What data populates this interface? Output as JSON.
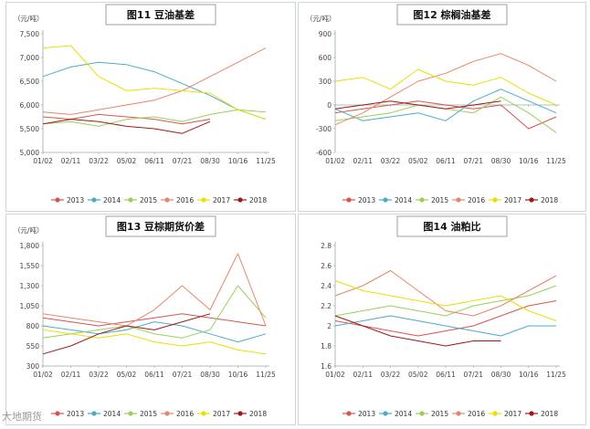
{
  "source_watermark": "大地期货",
  "colors": {
    "2013": "#d9534f",
    "2014": "#4bacc6",
    "2015": "#9bcf5a",
    "2016": "#e8856a",
    "2017": "#e8e000",
    "2018": "#9c1a1a"
  },
  "chart_data": [
    {
      "type": "line",
      "title": "图11 豆油基差",
      "ylabel": "（元/吨）",
      "x_ticks": [
        "01/02",
        "02/11",
        "03/22",
        "05/02",
        "06/11",
        "07/21",
        "08/30",
        "10/16",
        "11/25"
      ],
      "y_ticks": [
        "7,500",
        "7,000",
        "6,500",
        "6,000",
        "5,500",
        "5,000"
      ],
      "ylim": [
        5000,
        7500
      ],
      "series": [
        {
          "name": "2013",
          "x": [
            "01/02",
            "02/11",
            "03/22",
            "05/02",
            "06/11",
            "07/21",
            "08/30"
          ],
          "values": [
            5750,
            5700,
            5800,
            5750,
            5700,
            5600,
            5700
          ]
        },
        {
          "name": "2014",
          "x": [
            "01/02",
            "02/11",
            "03/22",
            "05/02",
            "06/11",
            "07/21",
            "08/30",
            "10/16",
            "11/25"
          ],
          "values": [
            6600,
            6800,
            6900,
            6850,
            6700,
            6450,
            6200,
            5900,
            5700
          ]
        },
        {
          "name": "2015",
          "x": [
            "01/02",
            "02/11",
            "03/22",
            "05/02",
            "06/11",
            "07/21",
            "08/30",
            "10/16",
            "11/25"
          ],
          "values": [
            5600,
            5650,
            5550,
            5700,
            5750,
            5650,
            5800,
            5900,
            5850
          ]
        },
        {
          "name": "2016",
          "x": [
            "01/02",
            "02/11",
            "03/22",
            "05/02",
            "06/11",
            "07/21",
            "08/30",
            "10/16",
            "11/25"
          ],
          "values": [
            5850,
            5800,
            5900,
            6000,
            6100,
            6300,
            6600,
            6900,
            7200
          ]
        },
        {
          "name": "2017",
          "x": [
            "01/02",
            "02/11",
            "03/22",
            "05/02",
            "06/11",
            "07/21",
            "08/30",
            "10/16",
            "11/25"
          ],
          "values": [
            7200,
            7250,
            6600,
            6300,
            6350,
            6300,
            6250,
            5900,
            5700
          ]
        },
        {
          "name": "2018",
          "x": [
            "01/02",
            "02/11",
            "03/22",
            "05/02",
            "06/11",
            "07/21",
            "08/30"
          ],
          "values": [
            5600,
            5700,
            5650,
            5550,
            5500,
            5400,
            5650
          ]
        }
      ],
      "legend": [
        "2013",
        "2014",
        "2015",
        "2016",
        "2017",
        "2018"
      ]
    },
    {
      "type": "line",
      "title": "图12 棕榈油基差",
      "ylabel": "（元/吨）",
      "x_ticks": [
        "01/02",
        "02/11",
        "03/22",
        "05/02",
        "06/11",
        "07/21",
        "08/30",
        "10/16",
        "11/25"
      ],
      "y_ticks": [
        "900",
        "600",
        "300",
        "0",
        "-300",
        "-600"
      ],
      "ylim": [
        -600,
        900
      ],
      "series": [
        {
          "name": "2013",
          "x": [
            "01/02",
            "02/11",
            "03/22",
            "05/02",
            "06/11",
            "07/21",
            "08/30",
            "10/16",
            "11/25"
          ],
          "values": [
            -100,
            -50,
            0,
            50,
            0,
            -50,
            0,
            -300,
            -150
          ]
        },
        {
          "name": "2014",
          "x": [
            "01/02",
            "02/11",
            "03/22",
            "05/02",
            "06/11",
            "07/21",
            "08/30",
            "10/16",
            "11/25"
          ],
          "values": [
            -50,
            -200,
            -150,
            -100,
            -200,
            50,
            200,
            50,
            -100
          ]
        },
        {
          "name": "2015",
          "x": [
            "01/02",
            "02/11",
            "03/22",
            "05/02",
            "06/11",
            "07/21",
            "08/30",
            "10/16",
            "11/25"
          ],
          "values": [
            -200,
            -150,
            -100,
            0,
            -50,
            -100,
            100,
            -100,
            -350
          ]
        },
        {
          "name": "2016",
          "x": [
            "01/02",
            "02/11",
            "03/22",
            "05/02",
            "06/11",
            "07/21",
            "08/30",
            "10/16",
            "11/25"
          ],
          "values": [
            -250,
            -100,
            100,
            300,
            400,
            550,
            650,
            500,
            300
          ]
        },
        {
          "name": "2017",
          "x": [
            "01/02",
            "02/11",
            "03/22",
            "05/02",
            "06/11",
            "07/21",
            "08/30",
            "10/16",
            "11/25"
          ],
          "values": [
            300,
            350,
            200,
            450,
            300,
            250,
            350,
            150,
            0
          ]
        },
        {
          "name": "2018",
          "x": [
            "01/02",
            "02/11",
            "03/22",
            "05/02",
            "06/11",
            "07/21",
            "08/30"
          ],
          "values": [
            -50,
            0,
            50,
            0,
            -50,
            0,
            50
          ]
        }
      ],
      "legend": [
        "2013",
        "2014",
        "2015",
        "2016",
        "2017",
        "2018"
      ]
    },
    {
      "type": "line",
      "title": "图13 豆棕期货价差",
      "ylabel": "（元/吨）",
      "x_ticks": [
        "01/02",
        "02/11",
        "03/22",
        "05/02",
        "06/11",
        "07/21",
        "08/30",
        "10/16",
        "11/25"
      ],
      "y_ticks": [
        "1,800",
        "1,550",
        "1,300",
        "1,050",
        "800",
        "550",
        "300"
      ],
      "ylim": [
        300,
        1800
      ],
      "series": [
        {
          "name": "2013",
          "x": [
            "01/02",
            "02/11",
            "03/22",
            "05/02",
            "06/11",
            "07/21",
            "08/30",
            "10/16",
            "11/25"
          ],
          "values": [
            900,
            850,
            800,
            850,
            900,
            950,
            900,
            850,
            800
          ]
        },
        {
          "name": "2014",
          "x": [
            "01/02",
            "02/11",
            "03/22",
            "05/02",
            "06/11",
            "07/21",
            "08/30",
            "10/16",
            "11/25"
          ],
          "values": [
            800,
            750,
            700,
            750,
            850,
            800,
            700,
            600,
            700
          ]
        },
        {
          "name": "2015",
          "x": [
            "01/02",
            "02/11",
            "03/22",
            "05/02",
            "06/11",
            "07/21",
            "08/30",
            "10/16",
            "11/25"
          ],
          "values": [
            650,
            700,
            750,
            800,
            700,
            650,
            750,
            1300,
            900
          ]
        },
        {
          "name": "2016",
          "x": [
            "01/02",
            "02/11",
            "03/22",
            "05/02",
            "06/11",
            "07/21",
            "08/30",
            "10/16",
            "11/25"
          ],
          "values": [
            950,
            900,
            850,
            800,
            1000,
            1300,
            1000,
            1700,
            800
          ]
        },
        {
          "name": "2017",
          "x": [
            "01/02",
            "02/11",
            "03/22",
            "05/02",
            "06/11",
            "07/21",
            "08/30",
            "10/16",
            "11/25"
          ],
          "values": [
            750,
            700,
            650,
            700,
            600,
            550,
            600,
            500,
            450
          ]
        },
        {
          "name": "2018",
          "x": [
            "01/02",
            "02/11",
            "03/22",
            "05/02",
            "06/11",
            "07/21",
            "08/30"
          ],
          "values": [
            450,
            550,
            700,
            800,
            750,
            850,
            950
          ]
        }
      ],
      "legend": [
        "2013",
        "2014",
        "2015",
        "2016",
        "2017",
        "2018"
      ]
    },
    {
      "type": "line",
      "title": "图14 油粕比",
      "ylabel": "",
      "x_ticks": [
        "01/02",
        "02/11",
        "03/22",
        "05/02",
        "06/11",
        "07/21",
        "08/30",
        "10/16",
        "11/25"
      ],
      "y_ticks": [
        "2.8",
        "2.6",
        "2.4",
        "2.2",
        "2",
        "1.8",
        "1.6"
      ],
      "ylim": [
        1.6,
        2.8
      ],
      "series": [
        {
          "name": "2013",
          "x": [
            "01/02",
            "02/11",
            "03/22",
            "05/02",
            "06/11",
            "07/21",
            "08/30",
            "10/16",
            "11/25"
          ],
          "values": [
            2.05,
            2.0,
            1.95,
            1.9,
            1.95,
            2.0,
            2.1,
            2.2,
            2.25
          ]
        },
        {
          "name": "2014",
          "x": [
            "01/02",
            "02/11",
            "03/22",
            "05/02",
            "06/11",
            "07/21",
            "08/30",
            "10/16",
            "11/25"
          ],
          "values": [
            2.0,
            2.05,
            2.1,
            2.05,
            2.0,
            1.95,
            1.9,
            2.0,
            2.0
          ]
        },
        {
          "name": "2015",
          "x": [
            "01/02",
            "02/11",
            "03/22",
            "05/02",
            "06/11",
            "07/21",
            "08/30",
            "10/16",
            "11/25"
          ],
          "values": [
            2.1,
            2.15,
            2.2,
            2.15,
            2.1,
            2.2,
            2.25,
            2.3,
            2.4
          ]
        },
        {
          "name": "2016",
          "x": [
            "01/02",
            "02/11",
            "03/22",
            "05/02",
            "06/11",
            "07/21",
            "08/30",
            "10/16",
            "11/25"
          ],
          "values": [
            2.3,
            2.4,
            2.55,
            2.35,
            2.15,
            2.1,
            2.2,
            2.35,
            2.5
          ]
        },
        {
          "name": "2017",
          "x": [
            "01/02",
            "02/11",
            "03/22",
            "05/02",
            "06/11",
            "07/21",
            "08/30",
            "10/16",
            "11/25"
          ],
          "values": [
            2.45,
            2.35,
            2.3,
            2.25,
            2.2,
            2.25,
            2.3,
            2.15,
            2.05
          ]
        },
        {
          "name": "2018",
          "x": [
            "01/02",
            "02/11",
            "03/22",
            "05/02",
            "06/11",
            "07/21",
            "08/30"
          ],
          "values": [
            2.1,
            2.0,
            1.9,
            1.85,
            1.8,
            1.85,
            1.85
          ]
        }
      ],
      "legend": [
        "2013",
        "2014",
        "2015",
        "2016",
        "2017",
        "2018"
      ]
    }
  ]
}
